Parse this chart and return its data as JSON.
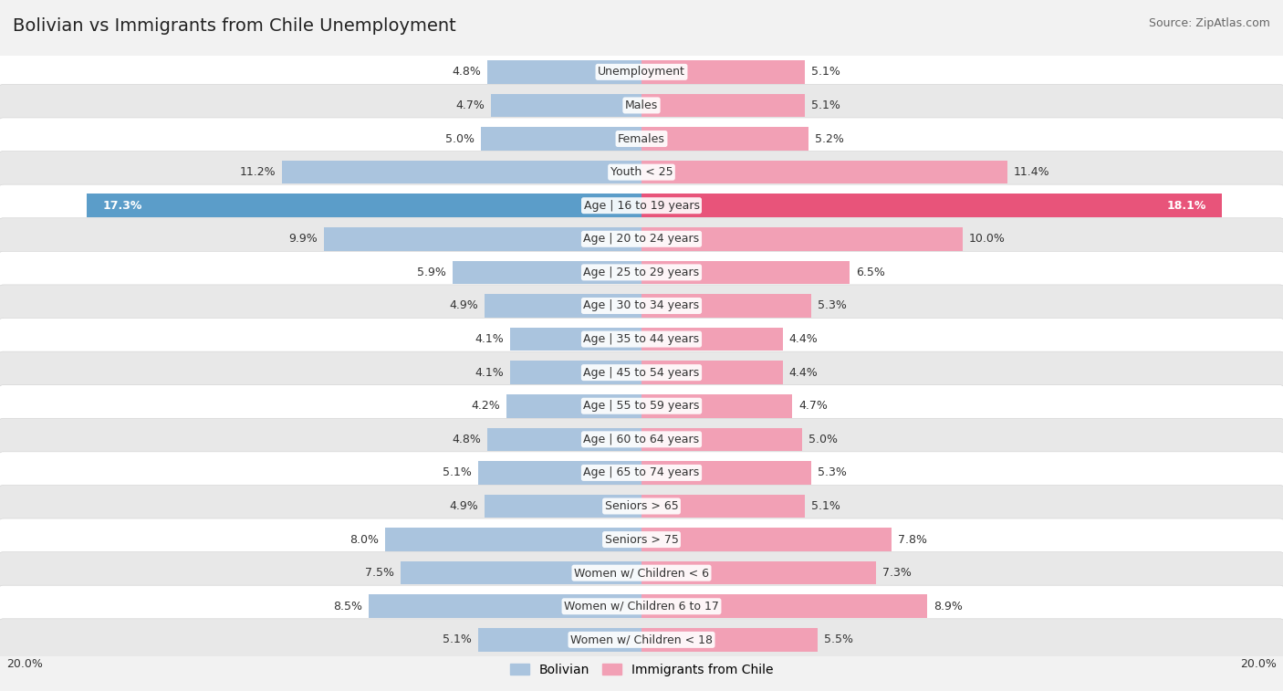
{
  "title": "Bolivian vs Immigrants from Chile Unemployment",
  "source": "Source: ZipAtlas.com",
  "categories": [
    "Unemployment",
    "Males",
    "Females",
    "Youth < 25",
    "Age | 16 to 19 years",
    "Age | 20 to 24 years",
    "Age | 25 to 29 years",
    "Age | 30 to 34 years",
    "Age | 35 to 44 years",
    "Age | 45 to 54 years",
    "Age | 55 to 59 years",
    "Age | 60 to 64 years",
    "Age | 65 to 74 years",
    "Seniors > 65",
    "Seniors > 75",
    "Women w/ Children < 6",
    "Women w/ Children 6 to 17",
    "Women w/ Children < 18"
  ],
  "bolivian": [
    4.8,
    4.7,
    5.0,
    11.2,
    17.3,
    9.9,
    5.9,
    4.9,
    4.1,
    4.1,
    4.2,
    4.8,
    5.1,
    4.9,
    8.0,
    7.5,
    8.5,
    5.1
  ],
  "chile": [
    5.1,
    5.1,
    5.2,
    11.4,
    18.1,
    10.0,
    6.5,
    5.3,
    4.4,
    4.4,
    4.7,
    5.0,
    5.3,
    5.1,
    7.8,
    7.3,
    8.9,
    5.5
  ],
  "bolivian_color": "#aac4de",
  "chile_color": "#f2a0b5",
  "bolivian_highlight": "#5b9dc9",
  "chile_highlight": "#e8547a",
  "axis_max": 20.0,
  "fig_bg": "#f2f2f2",
  "row_light": "#ffffff",
  "row_dark": "#e8e8e8",
  "label_fontsize": 9.0,
  "title_fontsize": 14,
  "source_fontsize": 9,
  "legend_fontsize": 10,
  "value_fontsize": 9.0
}
